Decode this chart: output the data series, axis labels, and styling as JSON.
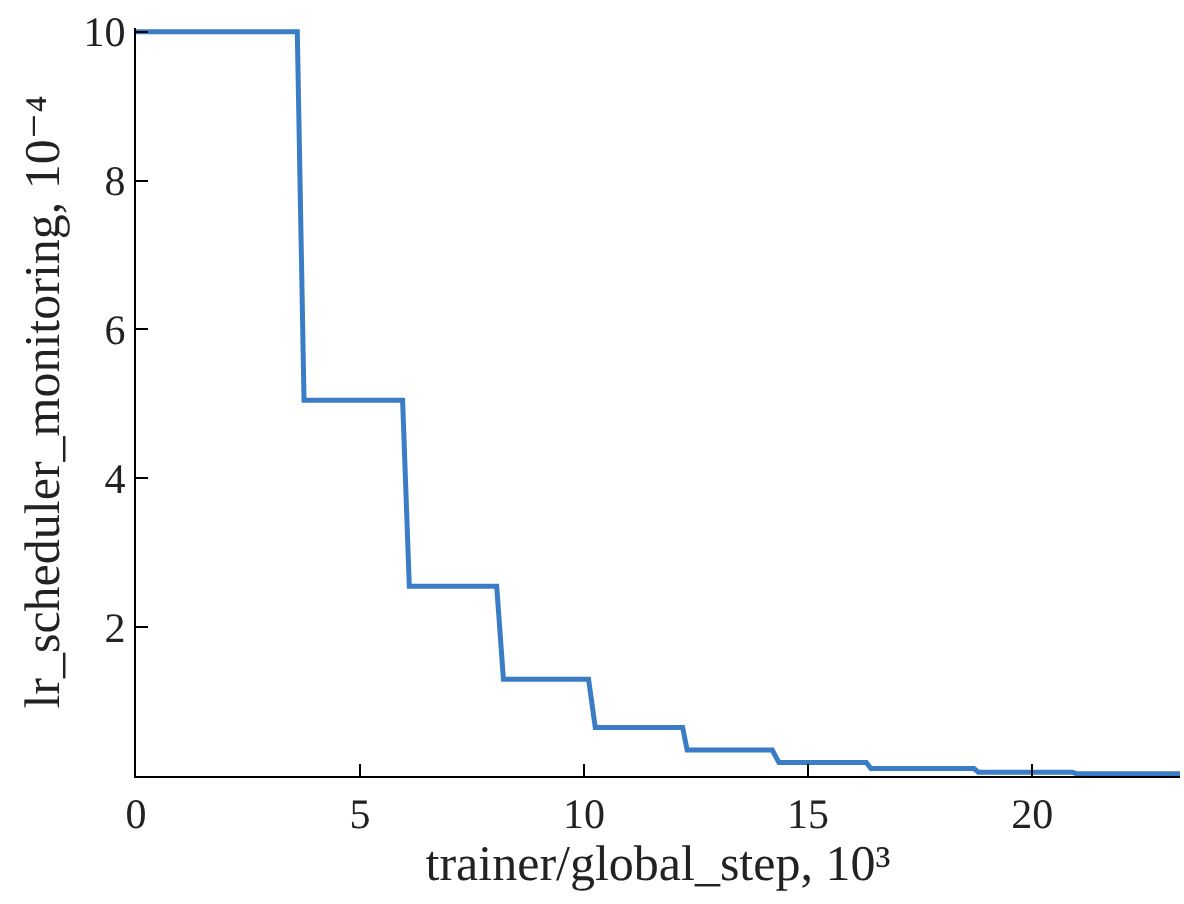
{
  "chart_data": {
    "type": "line",
    "xlabel": "trainer/global_step, 10³",
    "ylabel": "lr_scheduler_monitoring, 10⁻⁴",
    "x": [
      0,
      3.6,
      3.75,
      5.95,
      6.1,
      8.05,
      8.2,
      10.1,
      10.25,
      12.2,
      12.3,
      14.2,
      14.35,
      16.3,
      16.4,
      18.7,
      18.8,
      20.9,
      21,
      23.3
    ],
    "series": [
      {
        "color": "#3a7dc4",
        "values": [
          10,
          10,
          5.05,
          5.05,
          2.55,
          2.55,
          1.3,
          1.3,
          0.65,
          0.65,
          0.35,
          0.35,
          0.18,
          0.18,
          0.1,
          0.1,
          0.05,
          0.05,
          0.03,
          0.03
        ]
      }
    ],
    "xlim": [
      0,
      23.3
    ],
    "ylim": [
      0,
      10.05
    ],
    "xticks": [
      0,
      5,
      10,
      15,
      20
    ],
    "yticks": [
      2,
      4,
      6,
      8,
      10
    ],
    "grid": false,
    "marker": "none",
    "line_style": "solid"
  }
}
